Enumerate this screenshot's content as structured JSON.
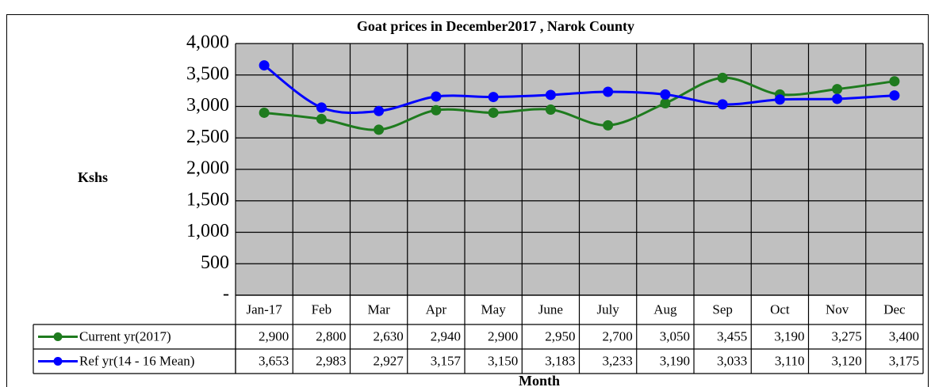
{
  "chart_data": {
    "type": "line",
    "title": "Goat prices in December2017 , Narok County",
    "y_label": "Kshs",
    "x_label": "Month",
    "categories": [
      "Jan-17",
      "Feb",
      "Mar",
      "Apr",
      "May",
      "June",
      "July",
      "Aug",
      "Sep",
      "Oct",
      "Nov",
      "Dec"
    ],
    "series": [
      {
        "name": "Current yr(2017)",
        "color": "#1e7b1e",
        "values": [
          2900,
          2800,
          2630,
          2940,
          2900,
          2950,
          2700,
          3050,
          3455,
          3190,
          3275,
          3400
        ],
        "value_labels": [
          "2,900",
          "2,800",
          "2,630",
          "2,940",
          "2,900",
          "2,950",
          "2,700",
          "3,050",
          "3,455",
          "3,190",
          "3,275",
          "3,400"
        ]
      },
      {
        "name": "Ref yr(14 - 16 Mean)",
        "color": "#0000ff",
        "values": [
          3653,
          2983,
          2927,
          3157,
          3150,
          3183,
          3233,
          3190,
          3033,
          3110,
          3120,
          3175
        ],
        "value_labels": [
          "3,653",
          "2,983",
          "2,927",
          "3,157",
          "3,150",
          "3,183",
          "3,233",
          "3,190",
          "3,033",
          "3,110",
          "3,120",
          "3,175"
        ]
      }
    ],
    "ylim": [
      0,
      4000
    ],
    "yticks": [
      {
        "value": 0,
        "label": "-"
      },
      500,
      {
        "value": 1000,
        "label": "1,000"
      },
      {
        "value": 1500,
        "label": "1,500"
      },
      {
        "value": 2000,
        "label": "2,000"
      },
      {
        "value": 2500,
        "label": "2,500"
      },
      {
        "value": 3000,
        "label": "3,000"
      },
      {
        "value": 3500,
        "label": "3,500"
      },
      {
        "value": 4000,
        "label": "4,000"
      }
    ],
    "grid": true,
    "smooth": true,
    "plot_background": "#c0c0c0"
  }
}
